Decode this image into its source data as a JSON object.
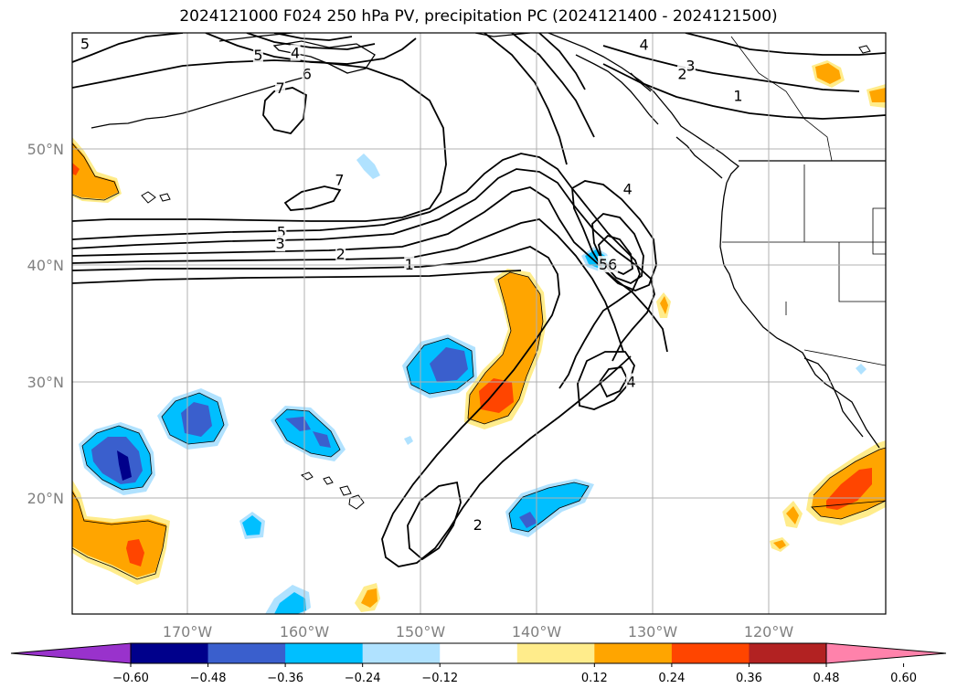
{
  "title": "2024121000 F024 250 hPa PV, precipitation PC (2024121400 - 2024121500)",
  "axes": {
    "lon_labels": [
      "170°W",
      "160°W",
      "150°W",
      "140°W",
      "130°W",
      "120°W"
    ],
    "lat_labels": [
      "50°N",
      "40°N",
      "30°N",
      "20°N"
    ],
    "lon_range": [
      -180,
      -110
    ],
    "lat_range": [
      10,
      60
    ],
    "grid": true
  },
  "colorbar": {
    "ticks": [
      "−0.60",
      "−0.48",
      "−0.36",
      "−0.24",
      "−0.12",
      "0.12",
      "0.24",
      "0.36",
      "0.48",
      "0.60"
    ],
    "colors": [
      "#9932cc",
      "#00008b",
      "#3a5fcd",
      "#00bfff",
      "#b0e2ff",
      "#ffffff",
      "#ffec8b",
      "#ffa500",
      "#ff4500",
      "#b22222",
      "#ff82ab"
    ],
    "extend": "both"
  },
  "contour_labels": [
    {
      "text": "5",
      "lon": -178.9,
      "lat": 59.1
    },
    {
      "text": "5",
      "lon": -164.0,
      "lat": 58.1
    },
    {
      "text": "4",
      "lon": -160.8,
      "lat": 58.3
    },
    {
      "text": "6",
      "lon": -159.8,
      "lat": 56.5
    },
    {
      "text": "7",
      "lon": -162.1,
      "lat": 55.3
    },
    {
      "text": "7",
      "lon": -157.0,
      "lat": 47.4
    },
    {
      "text": "5",
      "lon": -162.0,
      "lat": 42.9
    },
    {
      "text": "3",
      "lon": -162.1,
      "lat": 41.9
    },
    {
      "text": "2",
      "lon": -156.9,
      "lat": 41.0
    },
    {
      "text": "1",
      "lon": -151.0,
      "lat": 40.1
    },
    {
      "text": "4",
      "lon": -130.8,
      "lat": 59.0
    },
    {
      "text": "3",
      "lon": -126.8,
      "lat": 57.2
    },
    {
      "text": "2",
      "lon": -127.5,
      "lat": 56.5
    },
    {
      "text": "1",
      "lon": -122.7,
      "lat": 54.6
    },
    {
      "text": "4",
      "lon": -132.2,
      "lat": 46.6
    },
    {
      "text": "56",
      "lon": -133.9,
      "lat": 40.1
    },
    {
      "text": "4",
      "lon": -131.9,
      "lat": 30.0
    },
    {
      "text": "2",
      "lon": -145.1,
      "lat": 17.7
    }
  ]
}
